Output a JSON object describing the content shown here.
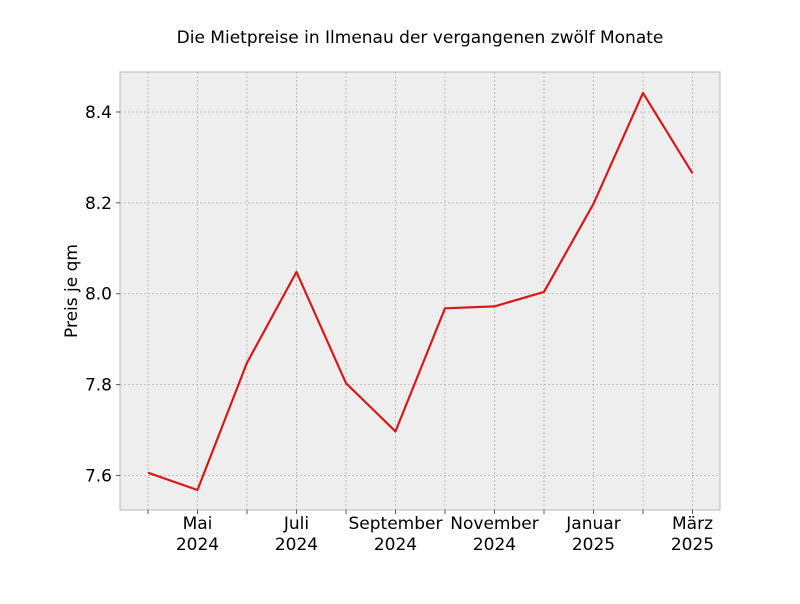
{
  "chart_data": {
    "type": "line",
    "title": "Die Mietpreise in Ilmenau der vergangenen zwölf Monate",
    "xlabel": "",
    "ylabel": "Preis je qm",
    "x": [
      "2024-04",
      "2024-05",
      "2024-06",
      "2024-07",
      "2024-08",
      "2024-09",
      "2024-10",
      "2024-11",
      "2024-12",
      "2025-01",
      "2025-02",
      "2025-03"
    ],
    "series": [
      {
        "values": [
          7.606,
          7.568,
          7.848,
          8.048,
          7.803,
          7.697,
          7.968,
          7.972,
          8.004,
          8.198,
          8.442,
          8.265
        ]
      }
    ],
    "ylim": [
      7.524,
      8.488
    ],
    "yticks": [
      "7.6",
      "7.8",
      "8.0",
      "8.2",
      "8.4"
    ],
    "xtick_labels": [
      {
        "x": "2024-05",
        "month": "Mai",
        "year": "2024"
      },
      {
        "x": "2024-07",
        "month": "Juli",
        "year": "2024"
      },
      {
        "x": "2024-09",
        "month": "September",
        "year": "2024"
      },
      {
        "x": "2024-11",
        "month": "November",
        "year": "2024"
      },
      {
        "x": "2025-01",
        "month": "Januar",
        "year": "2025"
      },
      {
        "x": "2025-03",
        "month": "März",
        "year": "2025"
      }
    ],
    "grid": true,
    "colors": {
      "line": "#d7191c",
      "plot_background": "#eeeeee",
      "grid": "#b0b0b0"
    }
  }
}
